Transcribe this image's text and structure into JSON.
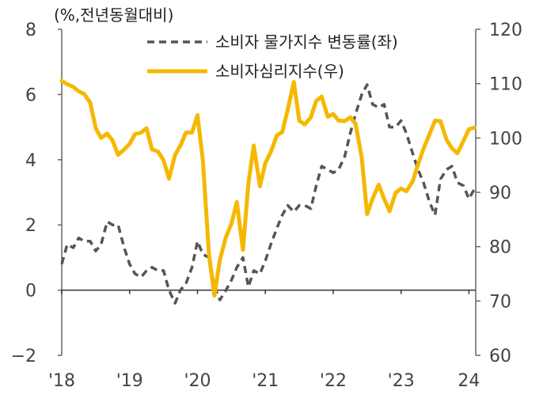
{
  "chart_data": {
    "type": "line",
    "unit_label": "(%,전년동월대비)",
    "x_tick_labels": [
      "'18",
      "'19",
      "'20",
      "'21",
      "'22",
      "'23",
      "24"
    ],
    "x_tick_years": [
      2018,
      2019,
      2020,
      2021,
      2022,
      2023,
      2024
    ],
    "x_range": [
      2018.0,
      2024.1
    ],
    "left_axis": {
      "ticks": [
        -2,
        0,
        2,
        4,
        6,
        8
      ],
      "tick_labels": [
        "−2",
        "0",
        "2",
        "4",
        "6",
        "8"
      ],
      "ylim": [
        -2,
        8
      ]
    },
    "right_axis": {
      "ticks": [
        60,
        70,
        80,
        90,
        100,
        110,
        120
      ],
      "tick_labels": [
        "60",
        "70",
        "80",
        "90",
        "100",
        "110",
        "120"
      ],
      "ylim": [
        60,
        120
      ]
    },
    "legend_position": "top",
    "series": [
      {
        "name": "소비자 물가지수 변동률(좌)",
        "axis": "left",
        "color": "#555555",
        "style": "dashed",
        "x": [
          2018.0,
          2018.08,
          2018.17,
          2018.25,
          2018.33,
          2018.42,
          2018.5,
          2018.58,
          2018.67,
          2018.75,
          2018.83,
          2018.92,
          2019.0,
          2019.08,
          2019.17,
          2019.25,
          2019.33,
          2019.42,
          2019.5,
          2019.58,
          2019.67,
          2019.75,
          2019.83,
          2019.92,
          2020.0,
          2020.08,
          2020.17,
          2020.25,
          2020.33,
          2020.42,
          2020.5,
          2020.58,
          2020.67,
          2020.75,
          2020.83,
          2020.92,
          2021.0,
          2021.08,
          2021.17,
          2021.25,
          2021.33,
          2021.42,
          2021.5,
          2021.58,
          2021.67,
          2021.75,
          2021.83,
          2021.92,
          2022.0,
          2022.08,
          2022.17,
          2022.25,
          2022.33,
          2022.42,
          2022.5,
          2022.58,
          2022.67,
          2022.75,
          2022.83,
          2022.92,
          2023.0,
          2023.08,
          2023.17,
          2023.25,
          2023.33,
          2023.42,
          2023.5,
          2023.58,
          2023.67,
          2023.75,
          2023.83,
          2023.92,
          2024.0,
          2024.08
        ],
        "values": [
          0.8,
          1.4,
          1.3,
          1.6,
          1.5,
          1.5,
          1.2,
          1.4,
          2.1,
          2.0,
          2.0,
          1.3,
          0.8,
          0.5,
          0.4,
          0.6,
          0.7,
          0.6,
          0.6,
          0.0,
          -0.4,
          0.0,
          0.2,
          0.7,
          1.5,
          1.1,
          1.0,
          0.1,
          -0.3,
          0.0,
          0.3,
          0.7,
          1.0,
          0.1,
          0.6,
          0.5,
          0.9,
          1.4,
          1.9,
          2.3,
          2.6,
          2.4,
          2.6,
          2.6,
          2.5,
          3.2,
          3.8,
          3.7,
          3.6,
          3.7,
          4.1,
          4.8,
          5.4,
          6.0,
          6.3,
          5.7,
          5.6,
          5.7,
          5.0,
          5.0,
          5.2,
          4.8,
          4.2,
          3.7,
          3.3,
          2.7,
          2.3,
          3.4,
          3.7,
          3.8,
          3.3,
          3.2,
          2.8,
          3.1
        ]
      },
      {
        "name": "소비자심리지수(우)",
        "axis": "right",
        "color": "#F5B800",
        "style": "solid",
        "x": [
          2018.0,
          2018.08,
          2018.17,
          2018.25,
          2018.33,
          2018.42,
          2018.5,
          2018.58,
          2018.67,
          2018.75,
          2018.83,
          2018.92,
          2019.0,
          2019.08,
          2019.17,
          2019.25,
          2019.33,
          2019.42,
          2019.5,
          2019.58,
          2019.67,
          2019.75,
          2019.83,
          2019.92,
          2020.0,
          2020.08,
          2020.17,
          2020.25,
          2020.33,
          2020.42,
          2020.5,
          2020.58,
          2020.67,
          2020.75,
          2020.83,
          2020.92,
          2021.0,
          2021.08,
          2021.17,
          2021.25,
          2021.33,
          2021.42,
          2021.5,
          2021.58,
          2021.67,
          2021.75,
          2021.83,
          2021.92,
          2022.0,
          2022.08,
          2022.17,
          2022.25,
          2022.33,
          2022.42,
          2022.5,
          2022.58,
          2022.67,
          2022.75,
          2022.83,
          2022.92,
          2023.0,
          2023.08,
          2023.17,
          2023.25,
          2023.33,
          2023.42,
          2023.5,
          2023.58,
          2023.67,
          2023.75,
          2023.83,
          2023.92,
          2024.0,
          2024.08
        ],
        "values": [
          110.5,
          109.9,
          109.4,
          108.6,
          108.1,
          106.5,
          101.8,
          100.0,
          100.8,
          99.5,
          96.9,
          97.9,
          98.9,
          100.7,
          101.0,
          101.8,
          97.9,
          97.5,
          95.9,
          92.5,
          96.9,
          98.6,
          101.0,
          101.0,
          104.2,
          95.8,
          78.4,
          71.0,
          77.6,
          81.8,
          84.2,
          88.2,
          79.4,
          91.6,
          98.6,
          91.1,
          95.4,
          97.4,
          100.5,
          101.1,
          105.2,
          110.3,
          103.2,
          102.5,
          103.8,
          106.8,
          107.6,
          103.9,
          104.4,
          103.2,
          103.1,
          103.8,
          102.6,
          96.4,
          86.0,
          88.8,
          91.4,
          88.8,
          86.5,
          89.9,
          90.7,
          90.2,
          92.0,
          95.1,
          98.0,
          100.7,
          103.2,
          103.1,
          99.7,
          98.1,
          97.2,
          99.5,
          101.6,
          101.9
        ]
      }
    ]
  }
}
